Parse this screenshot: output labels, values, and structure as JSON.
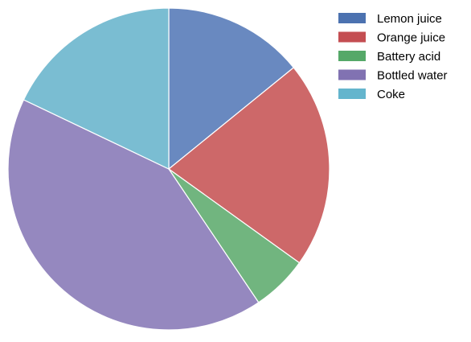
{
  "chart_data": {
    "type": "pie",
    "title": "",
    "categories": [
      "Lemon juice",
      "Orange juice",
      "Battery acid",
      "Bottled water",
      "Coke"
    ],
    "values": [
      15,
      22,
      6,
      44,
      19
    ],
    "colors": [
      "#6989c0",
      "#cd6869",
      "#71b57f",
      "#9588bf",
      "#7abdd2"
    ],
    "legend_colors": [
      "#4c72b0",
      "#c44e52",
      "#55a868",
      "#8172b2",
      "#64b5cd"
    ],
    "start": "top",
    "direction": "clockwise",
    "legend": "top-right"
  }
}
